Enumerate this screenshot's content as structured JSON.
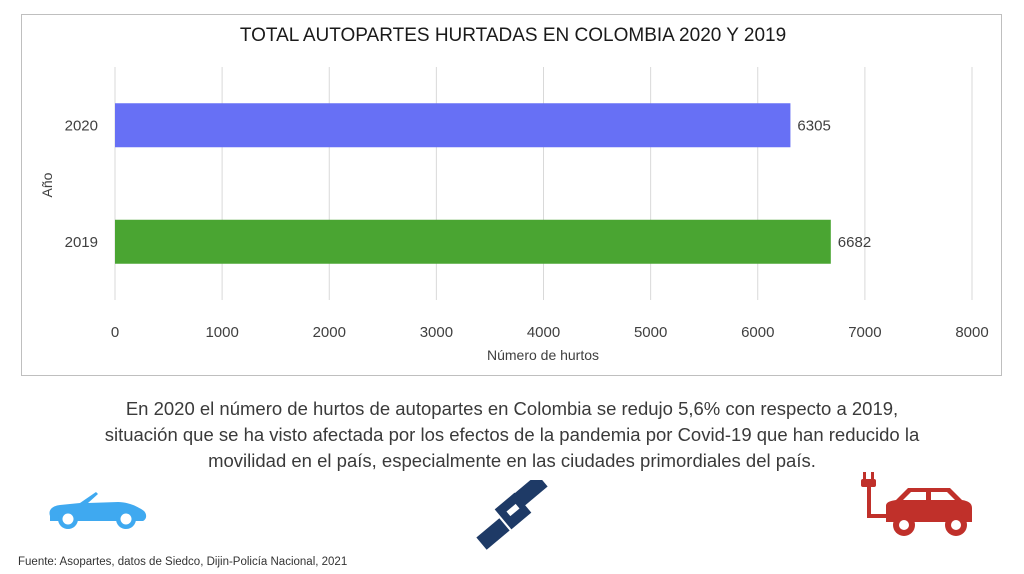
{
  "chart_data": {
    "type": "bar",
    "orientation": "horizontal",
    "title": "TOTAL AUTOPARTES HURTADAS EN COLOMBIA 2020 Y 2019",
    "xlabel": "Número de hurtos",
    "ylabel": "Año",
    "categories": [
      "2020",
      "2019"
    ],
    "values": [
      6305,
      6682
    ],
    "colors": [
      "#6770f5",
      "#4aa532"
    ],
    "xlim": [
      0,
      8000
    ],
    "xticks": [
      0,
      1000,
      2000,
      3000,
      4000,
      5000,
      6000,
      7000,
      8000
    ],
    "grid": "vertical",
    "legend": "none"
  },
  "caption": {
    "lines": [
      "En 2020 el número de hurtos de autopartes en Colombia se redujo 5,6% con respecto a 2019,",
      "situación que se ha visto afectada por los efectos de la pandemia por Covid-19 que han reducido la",
      "movilidad en el país, especialmente en las ciudades primordiales del país."
    ]
  },
  "source": "Fuente: Asopartes, datos de Siedco, Dijin-Policía Nacional, 2021",
  "icons": {
    "left": {
      "name": "convertible-car-icon",
      "color": "#3fa9f0"
    },
    "center": {
      "name": "seatbelt-icon",
      "color": "#1e3a66"
    },
    "right": {
      "name": "electric-car-icon",
      "color": "#c0302a"
    }
  }
}
